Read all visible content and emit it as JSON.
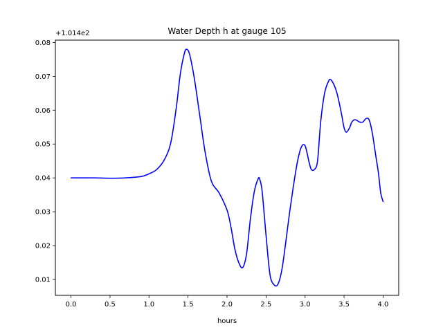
{
  "chart_data": {
    "type": "line",
    "title": "Water Depth h at gauge 105",
    "xlabel": "hours",
    "ylabel": "",
    "offset_text": "+1.014e2",
    "xlim": [
      -0.2,
      4.2
    ],
    "ylim": [
      0.0053,
      0.0807
    ],
    "x_ticks": [
      0.0,
      0.5,
      1.0,
      1.5,
      2.0,
      2.5,
      3.0,
      3.5,
      4.0
    ],
    "x_tick_labels": [
      "0.0",
      "0.5",
      "1.0",
      "1.5",
      "2.0",
      "2.5",
      "3.0",
      "3.5",
      "4.0"
    ],
    "y_ticks": [
      0.01,
      0.02,
      0.03,
      0.04,
      0.05,
      0.06,
      0.07,
      0.08
    ],
    "y_tick_labels": [
      "0.01",
      "0.02",
      "0.03",
      "0.04",
      "0.05",
      "0.06",
      "0.07",
      "0.08"
    ],
    "grid": false,
    "series": [
      {
        "color": "#0000ff",
        "x": [
          0.0,
          0.3,
          0.5,
          0.7,
          0.9,
          1.0,
          1.1,
          1.2,
          1.28,
          1.35,
          1.4,
          1.45,
          1.48,
          1.52,
          1.58,
          1.65,
          1.72,
          1.8,
          1.9,
          2.0,
          2.05,
          2.1,
          2.15,
          2.2,
          2.25,
          2.3,
          2.35,
          2.4,
          2.42,
          2.45,
          2.5,
          2.55,
          2.6,
          2.65,
          2.7,
          2.75,
          2.8,
          2.85,
          2.9,
          2.95,
          3.0,
          3.05,
          3.08,
          3.12,
          3.16,
          3.2,
          3.25,
          3.3,
          3.33,
          3.38,
          3.42,
          3.47,
          3.5,
          3.53,
          3.57,
          3.6,
          3.64,
          3.7,
          3.74,
          3.78,
          3.82,
          3.86,
          3.9,
          3.94,
          3.97,
          4.0
        ],
        "y": [
          0.04,
          0.04,
          0.0399,
          0.04,
          0.0404,
          0.0412,
          0.0425,
          0.0455,
          0.0505,
          0.0608,
          0.0705,
          0.0765,
          0.078,
          0.0765,
          0.0695,
          0.0585,
          0.0475,
          0.039,
          0.0355,
          0.0305,
          0.0255,
          0.019,
          0.015,
          0.0135,
          0.0175,
          0.028,
          0.036,
          0.0398,
          0.0395,
          0.036,
          0.023,
          0.0115,
          0.0085,
          0.0085,
          0.0125,
          0.0205,
          0.0295,
          0.0375,
          0.0445,
          0.049,
          0.0495,
          0.0448,
          0.0425,
          0.0425,
          0.045,
          0.0565,
          0.065,
          0.0685,
          0.069,
          0.067,
          0.064,
          0.0585,
          0.0548,
          0.0535,
          0.0548,
          0.0565,
          0.0572,
          0.0565,
          0.0565,
          0.0575,
          0.0572,
          0.0535,
          0.0475,
          0.0415,
          0.0355,
          0.033
        ]
      }
    ]
  }
}
